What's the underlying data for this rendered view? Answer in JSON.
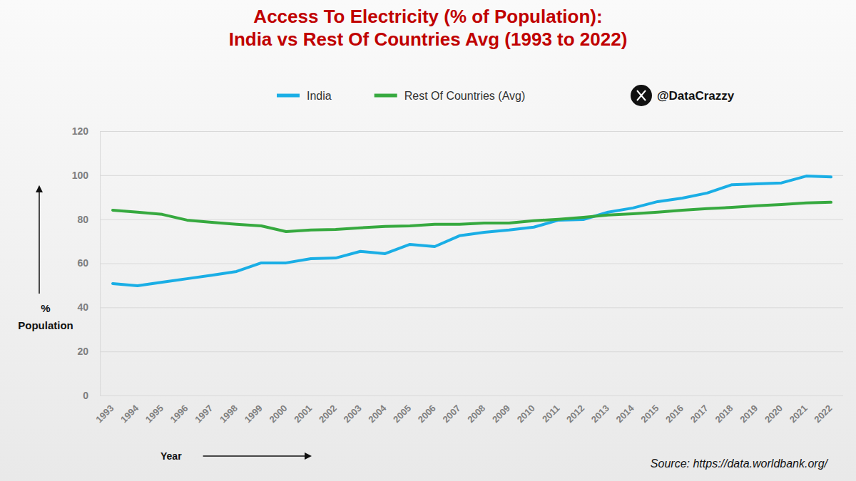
{
  "chart_data": {
    "type": "line",
    "title": [
      "Access To Electricity (% of Population):",
      "India vs Rest Of Countries Avg (1993 to 2022)"
    ],
    "x_label": "Year",
    "y_label": "% Population",
    "annotations": [
      "@DataCrazzy",
      "Source: https://data.worldbank.org/"
    ],
    "x": [
      1993,
      1994,
      1995,
      1996,
      1997,
      1998,
      1999,
      2000,
      2001,
      2002,
      2003,
      2004,
      2005,
      2006,
      2007,
      2008,
      2009,
      2010,
      2011,
      2012,
      2013,
      2014,
      2015,
      2016,
      2017,
      2018,
      2019,
      2020,
      2021,
      2022
    ],
    "xlim": [
      1993,
      2022
    ],
    "xticks": [
      1993,
      1994,
      1995,
      1996,
      1997,
      1998,
      1999,
      2000,
      2001,
      2002,
      2003,
      2004,
      2005,
      2006,
      2007,
      2008,
      2009,
      2010,
      2011,
      2012,
      2013,
      2014,
      2015,
      2016,
      2017,
      2018,
      2019,
      2020,
      2021,
      2022
    ],
    "ylim": [
      0,
      120
    ],
    "yticks": [
      0,
      20,
      40,
      60,
      80,
      100,
      120
    ],
    "grid": true,
    "legend": "top",
    "series": [
      {
        "name": "India",
        "color": "#1aaee5",
        "values": [
          50.8,
          49.8,
          51.4,
          53.0,
          54.6,
          56.3,
          60.2,
          60.2,
          62.1,
          62.4,
          65.4,
          64.4,
          68.6,
          67.6,
          72.5,
          74.1,
          75.1,
          76.4,
          79.6,
          79.9,
          83.2,
          85.1,
          88.0,
          89.6,
          91.9,
          95.7,
          96.1,
          96.5,
          99.6,
          99.2
        ]
      },
      {
        "name": "Rest Of Countries (Avg)",
        "color": "#36a93f",
        "values": [
          84.1,
          83.2,
          82.2,
          79.6,
          78.6,
          77.7,
          77.0,
          74.4,
          75.1,
          75.4,
          76.1,
          76.7,
          77.0,
          77.7,
          77.7,
          78.3,
          78.3,
          79.3,
          80.0,
          80.9,
          81.9,
          82.5,
          83.2,
          84.1,
          84.8,
          85.4,
          86.1,
          86.7,
          87.4,
          87.7
        ]
      }
    ]
  }
}
